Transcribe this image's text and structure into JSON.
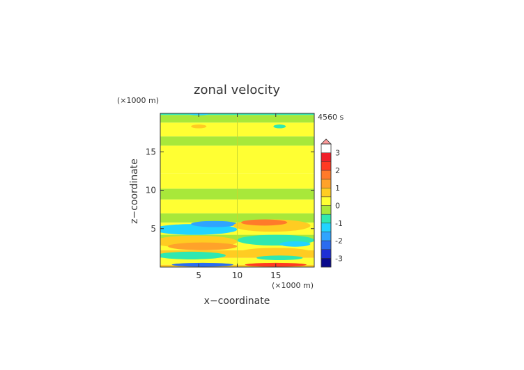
{
  "chart_data": {
    "type": "heatmap",
    "title": "zonal velocity",
    "xlabel": "x−coordinate",
    "ylabel": "z−coordinate",
    "x_unit": "(×1000 m)",
    "y_unit": "(×1000 m)",
    "time_label": "4560 s",
    "xlim": [
      0,
      20
    ],
    "ylim": [
      0,
      20
    ],
    "x_ticks": [
      5,
      10,
      15
    ],
    "y_ticks": [
      5,
      10,
      15
    ],
    "colorbar": {
      "ticks": [
        3,
        2,
        1,
        0,
        -1,
        -2,
        -3
      ],
      "levels": [
        -3.5,
        -3.0,
        -2.5,
        -2.0,
        -1.5,
        -1.0,
        -0.5,
        0,
        0.5,
        1.0,
        1.5,
        2.0,
        2.5,
        3.0,
        3.5
      ],
      "colors": [
        "#0a0a8c",
        "#1f2fd6",
        "#2a6cf0",
        "#2fa4ff",
        "#22d4ff",
        "#2fe8b0",
        "#a8e83a",
        "#ffff33",
        "#ffcc22",
        "#ffa22a",
        "#ff7a2a",
        "#ff3a22",
        "#f0202a",
        "#ff9a9a"
      ],
      "extend_max": true
    },
    "bands": [
      {
        "z": [
          0.0,
          0.3
        ],
        "value": 0.6
      },
      {
        "z": [
          0.3,
          1.2
        ],
        "value": 0.2
      },
      {
        "z": [
          1.2,
          2.2
        ],
        "value": 0.8
      },
      {
        "z": [
          2.2,
          3.3
        ],
        "value": 0.2
      },
      {
        "z": [
          3.3,
          4.2
        ],
        "value": -0.2
      },
      {
        "z": [
          4.2,
          5.8
        ],
        "value": 0.2
      },
      {
        "z": [
          5.8,
          7.0
        ],
        "value": -0.2
      },
      {
        "z": [
          7.0,
          8.8
        ],
        "value": 0.2
      },
      {
        "z": [
          8.8,
          10.2
        ],
        "value": -0.2
      },
      {
        "z": [
          10.2,
          12.2
        ],
        "value": 0.2
      },
      {
        "z": [
          12.2,
          15.8
        ],
        "value": 0.2
      },
      {
        "z": [
          15.8,
          17.0
        ],
        "value": -0.2
      },
      {
        "z": [
          17.0,
          18.8
        ],
        "value": 0.2
      },
      {
        "z": [
          18.8,
          19.8
        ],
        "value": -0.2
      },
      {
        "z": [
          19.8,
          20.0
        ],
        "value": -0.6
      }
    ],
    "blobs": [
      {
        "x": 4.5,
        "z": 3.3,
        "rx": 5.5,
        "rz": 0.8,
        "value": 0.8
      },
      {
        "x": 5.5,
        "z": 2.7,
        "rx": 4.5,
        "rz": 0.5,
        "value": 1.2
      },
      {
        "x": 4.0,
        "z": 1.5,
        "rx": 4.5,
        "rz": 0.5,
        "value": -0.6
      },
      {
        "x": 4.5,
        "z": 4.9,
        "rx": 5.5,
        "rz": 0.7,
        "value": -1.1
      },
      {
        "x": 7.0,
        "z": 5.6,
        "rx": 3.0,
        "rz": 0.4,
        "value": -1.6
      },
      {
        "x": 5.5,
        "z": 0.3,
        "rx": 4.0,
        "rz": 0.25,
        "value": -2.2
      },
      {
        "x": 14.5,
        "z": 5.4,
        "rx": 5.0,
        "rz": 0.8,
        "value": 0.8
      },
      {
        "x": 13.5,
        "z": 5.8,
        "rx": 3.0,
        "rz": 0.4,
        "value": 1.6
      },
      {
        "x": 15.0,
        "z": 3.5,
        "rx": 5.0,
        "rz": 0.7,
        "value": -0.7
      },
      {
        "x": 17.5,
        "z": 3.0,
        "rx": 2.0,
        "rz": 0.35,
        "value": -1.3
      },
      {
        "x": 15.0,
        "z": 2.0,
        "rx": 4.5,
        "rz": 0.5,
        "value": 0.7
      },
      {
        "x": 15.5,
        "z": 1.2,
        "rx": 3.0,
        "rz": 0.3,
        "value": -0.6
      },
      {
        "x": 15.0,
        "z": 0.3,
        "rx": 4.0,
        "rz": 0.25,
        "value": 2.2
      },
      {
        "x": 5.0,
        "z": 18.3,
        "rx": 1.0,
        "rz": 0.25,
        "value": 0.7
      },
      {
        "x": 15.5,
        "z": 18.3,
        "rx": 0.8,
        "rz": 0.25,
        "value": -0.8
      },
      {
        "x": 5.0,
        "z": 19.9,
        "rx": 1.2,
        "rz": 0.15,
        "value": -1.2
      }
    ]
  }
}
